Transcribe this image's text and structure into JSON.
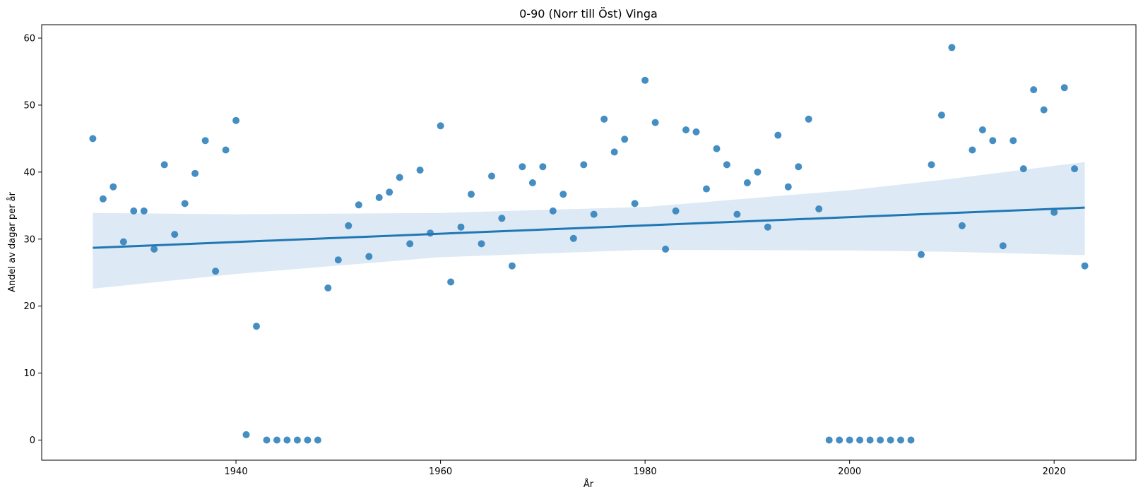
{
  "chart_data": {
    "type": "scatter",
    "title": "0-90 (Norr till Öst) Vinga",
    "xlabel": "År",
    "ylabel": "Andel av dagar per år",
    "xlim": [
      1921,
      2028
    ],
    "ylim": [
      -3,
      62
    ],
    "xticks": [
      1940,
      1960,
      1980,
      2000,
      2020
    ],
    "yticks": [
      0,
      10,
      20,
      30,
      40,
      50,
      60
    ],
    "grid": false,
    "colors": {
      "points": "#3182bd",
      "regression_line": "#1f77b4",
      "confidence_band": "#c6dbef"
    },
    "points": {
      "x": [
        1926,
        1927,
        1928,
        1929,
        1930,
        1931,
        1932,
        1933,
        1934,
        1935,
        1936,
        1937,
        1938,
        1939,
        1940,
        1941,
        1942,
        1943,
        1944,
        1945,
        1946,
        1947,
        1948,
        1949,
        1950,
        1951,
        1952,
        1953,
        1954,
        1955,
        1956,
        1957,
        1958,
        1959,
        1960,
        1961,
        1962,
        1963,
        1964,
        1965,
        1966,
        1967,
        1968,
        1969,
        1970,
        1971,
        1972,
        1973,
        1974,
        1975,
        1976,
        1977,
        1978,
        1979,
        1980,
        1981,
        1982,
        1983,
        1984,
        1985,
        1986,
        1987,
        1988,
        1989,
        1990,
        1991,
        1992,
        1993,
        1994,
        1995,
        1996,
        1997,
        1998,
        1999,
        2000,
        2001,
        2002,
        2003,
        2004,
        2005,
        2006,
        2007,
        2008,
        2009,
        2010,
        2011,
        2012,
        2013,
        2014,
        2015,
        2016,
        2017,
        2018,
        2019,
        2020,
        2021,
        2022,
        2023
      ],
      "y": [
        45.0,
        36.0,
        37.8,
        29.6,
        34.2,
        34.2,
        28.5,
        41.1,
        30.7,
        35.3,
        39.8,
        44.7,
        25.2,
        43.3,
        47.7,
        0.8,
        17.0,
        0,
        0,
        0,
        0,
        0,
        0,
        22.7,
        26.9,
        32.0,
        35.1,
        27.4,
        36.2,
        37.0,
        39.2,
        29.3,
        40.3,
        30.9,
        46.9,
        23.6,
        31.8,
        36.7,
        29.3,
        39.4,
        33.1,
        26.0,
        40.8,
        38.4,
        40.8,
        34.2,
        36.7,
        30.1,
        41.1,
        33.7,
        47.9,
        43.0,
        44.9,
        35.3,
        53.7,
        47.4,
        28.5,
        34.2,
        46.3,
        46.0,
        37.5,
        43.5,
        41.1,
        33.7,
        38.4,
        40.0,
        31.8,
        45.5,
        37.8,
        40.8,
        47.9,
        34.5,
        0,
        0,
        0,
        0,
        0,
        0,
        0,
        0,
        0,
        27.7,
        41.1,
        48.5,
        58.6,
        32.0,
        43.3,
        46.3,
        44.7,
        29.0,
        44.7,
        40.5,
        52.3,
        49.3,
        34.0,
        52.6,
        40.5,
        26.0
      ]
    },
    "regression": {
      "x": [
        1926,
        2023
      ],
      "y": [
        28.7,
        34.7
      ]
    },
    "confidence_band": {
      "x": [
        1926,
        1940,
        1960,
        1980,
        2000,
        2010,
        2023
      ],
      "upper": [
        33.9,
        33.7,
        33.9,
        34.8,
        37.3,
        39.0,
        41.5
      ],
      "lower": [
        22.6,
        24.8,
        27.3,
        28.4,
        28.3,
        28.1,
        27.6
      ]
    }
  }
}
